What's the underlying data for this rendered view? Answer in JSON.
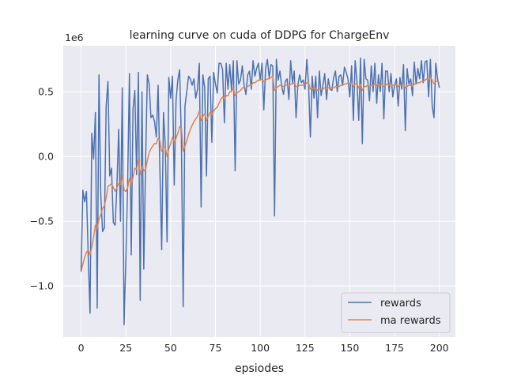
{
  "chart_data": {
    "type": "line",
    "title": "learning curve on cuda of DDPG for ChargeEnv",
    "xlabel": "epsiodes",
    "ylabel": "",
    "y_offset_label": "1e6",
    "xlim": [
      -9.95,
      208.95
    ],
    "ylim": [
      -1.395,
      0.855
    ],
    "x_ticks": [
      0,
      25,
      50,
      75,
      100,
      125,
      150,
      175,
      200
    ],
    "x_tick_labels": [
      "0",
      "25",
      "50",
      "75",
      "100",
      "125",
      "150",
      "175",
      "200"
    ],
    "y_ticks": [
      -1.0,
      -0.5,
      0.0,
      0.5
    ],
    "y_tick_labels": [
      "−1.0",
      "−0.5",
      "0.0",
      "0.5"
    ],
    "grid": true,
    "legend_position": "lower-right",
    "colors": {
      "background": "#eaeaf2",
      "grid": "#ffffff",
      "rewards": "#4c72b0",
      "ma_rewards": "#dd8452"
    },
    "series": [
      {
        "name": "rewards",
        "color": "#4c72b0",
        "values": [
          -0.89,
          -0.26,
          -0.35,
          -0.27,
          -0.77,
          -1.21,
          0.18,
          -0.02,
          0.34,
          -1.17,
          0.63,
          -0.3,
          -0.58,
          -0.55,
          0.39,
          0.58,
          -0.15,
          -0.09,
          -0.51,
          -0.53,
          -0.23,
          0.21,
          -0.5,
          0.53,
          -1.3,
          -0.8,
          -0.19,
          0.64,
          -0.76,
          0.37,
          0.51,
          -0.14,
          0.65,
          -1.11,
          0.5,
          -0.87,
          -0.05,
          0.63,
          0.56,
          0.3,
          0.32,
          0.27,
          0.15,
          0.55,
          -0.1,
          -0.72,
          0.34,
          0.08,
          -0.66,
          0.61,
          0.45,
          0.62,
          -0.22,
          0.43,
          0.59,
          0.67,
          0.13,
          -1.16,
          0.39,
          0.5,
          0.62,
          0.6,
          0.55,
          0.6,
          0.45,
          0.52,
          0.72,
          -0.39,
          0.63,
          0.53,
          -0.15,
          0.6,
          0.62,
          0.11,
          0.65,
          0.56,
          0.49,
          0.72,
          0.72,
          0.67,
          0.26,
          0.72,
          0.52,
          0.71,
          0.51,
          0.74,
          -0.11,
          0.74,
          0.56,
          0.59,
          0.7,
          0.55,
          0.48,
          0.63,
          0.66,
          0.52,
          0.74,
          0.62,
          0.68,
          0.72,
          0.59,
          0.72,
          0.36,
          0.68,
          0.75,
          0.61,
          0.71,
          0.7,
          -0.46,
          0.75,
          0.59,
          0.66,
          0.54,
          0.48,
          0.58,
          0.6,
          0.44,
          0.74,
          0.57,
          0.66,
          0.3,
          0.55,
          0.63,
          0.57,
          0.59,
          0.52,
          0.75,
          0.55,
          0.15,
          0.62,
          0.45,
          0.62,
          0.3,
          0.66,
          0.47,
          0.55,
          0.64,
          0.44,
          0.6,
          0.52,
          0.51,
          0.61,
          0.66,
          0.5,
          0.62,
          0.63,
          0.55,
          0.69,
          0.65,
          0.6,
          0.46,
          0.7,
          0.28,
          0.74,
          0.58,
          0.28,
          0.76,
          0.1,
          0.75,
          0.6,
          0.59,
          0.43,
          0.7,
          0.5,
          0.72,
          0.41,
          0.63,
          0.5,
          0.72,
          0.29,
          0.66,
          0.66,
          0.5,
          0.64,
          0.46,
          0.55,
          0.6,
          0.39,
          0.61,
          0.52,
          0.71,
          0.2,
          0.68,
          0.56,
          0.6,
          0.47,
          0.73,
          0.56,
          0.68,
          0.6,
          0.74,
          0.57,
          0.73,
          0.74,
          0.46,
          0.75,
          0.39,
          0.3,
          0.72,
          0.6,
          0.53
        ]
      },
      {
        "name": "ma rewards",
        "color": "#dd8452",
        "values": [
          -0.89,
          -0.83,
          -0.78,
          -0.74,
          -0.72,
          -0.76,
          -0.7,
          -0.62,
          -0.53,
          -0.56,
          -0.48,
          -0.45,
          -0.4,
          -0.38,
          -0.32,
          -0.23,
          -0.22,
          -0.21,
          -0.24,
          -0.27,
          -0.24,
          -0.21,
          -0.22,
          -0.15,
          -0.26,
          -0.27,
          -0.24,
          -0.17,
          -0.22,
          -0.16,
          -0.09,
          -0.1,
          -0.03,
          -0.14,
          -0.07,
          -0.11,
          -0.1,
          -0.03,
          0.03,
          0.06,
          0.08,
          0.1,
          0.1,
          0.14,
          0.12,
          0.04,
          0.07,
          0.07,
          0.0,
          0.06,
          0.1,
          0.15,
          0.11,
          0.14,
          0.18,
          0.23,
          0.22,
          0.04,
          0.08,
          0.12,
          0.17,
          0.21,
          0.24,
          0.27,
          0.29,
          0.31,
          0.35,
          0.28,
          0.31,
          0.33,
          0.28,
          0.31,
          0.34,
          0.32,
          0.35,
          0.37,
          0.38,
          0.41,
          0.44,
          0.46,
          0.44,
          0.47,
          0.47,
          0.5,
          0.5,
          0.53,
          0.47,
          0.49,
          0.5,
          0.51,
          0.53,
          0.53,
          0.53,
          0.54,
          0.55,
          0.55,
          0.57,
          0.57,
          0.58,
          0.59,
          0.59,
          0.6,
          0.58,
          0.59,
          0.6,
          0.6,
          0.61,
          0.62,
          0.51,
          0.53,
          0.54,
          0.55,
          0.55,
          0.54,
          0.55,
          0.55,
          0.54,
          0.56,
          0.56,
          0.57,
          0.54,
          0.54,
          0.55,
          0.55,
          0.55,
          0.55,
          0.57,
          0.57,
          0.52,
          0.53,
          0.52,
          0.53,
          0.51,
          0.52,
          0.52,
          0.52,
          0.53,
          0.52,
          0.53,
          0.53,
          0.53,
          0.53,
          0.54,
          0.54,
          0.54,
          0.55,
          0.55,
          0.56,
          0.56,
          0.57,
          0.56,
          0.57,
          0.54,
          0.56,
          0.56,
          0.53,
          0.56,
          0.51,
          0.54,
          0.54,
          0.55,
          0.54,
          0.55,
          0.55,
          0.56,
          0.55,
          0.56,
          0.55,
          0.56,
          0.54,
          0.55,
          0.56,
          0.55,
          0.56,
          0.55,
          0.55,
          0.56,
          0.54,
          0.55,
          0.55,
          0.56,
          0.53,
          0.54,
          0.55,
          0.55,
          0.54,
          0.56,
          0.56,
          0.57,
          0.57,
          0.58,
          0.58,
          0.59,
          0.6,
          0.59,
          0.61,
          0.59,
          0.56,
          0.58,
          0.58,
          0.57
        ]
      }
    ]
  }
}
